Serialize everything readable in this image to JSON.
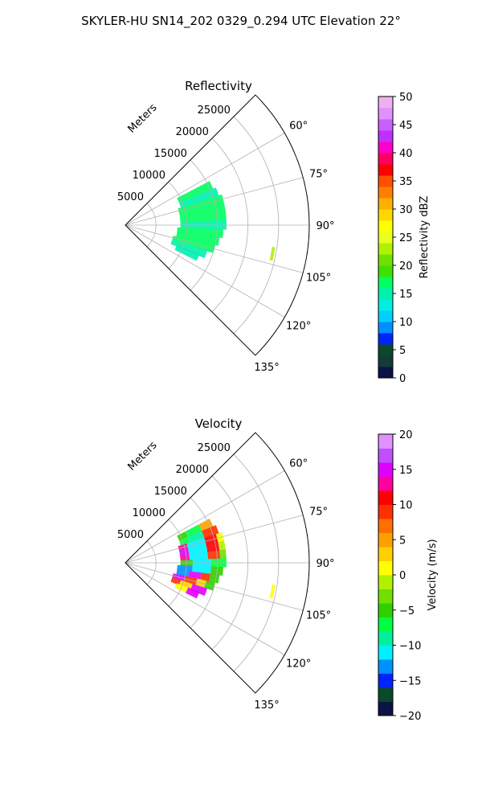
{
  "suptitle": "SKYLER-HU  SN14_202  0329_0.294 UTC Elevation 22°",
  "chart_data": [
    {
      "type": "heatmap",
      "title": "Reflectivity",
      "radial_label": "Meters",
      "radial_ticks": [
        5000,
        10000,
        15000,
        20000,
        25000
      ],
      "radial_tick_labels": [
        "5000",
        "10000",
        "15000",
        "20000",
        "25000"
      ],
      "range_max": 30000,
      "azimuth_range": [
        45,
        135
      ],
      "azimuth_ticks": [
        60,
        75,
        90,
        105,
        120,
        135
      ],
      "azimuth_tick_labels": [
        "60°",
        "75°",
        "90°",
        "105°",
        "120°",
        "135°"
      ],
      "grid": true,
      "colorbar": {
        "label": "Reflectivity dBZ",
        "range": [
          0,
          50
        ],
        "ticks": [
          0,
          5,
          10,
          15,
          20,
          25,
          30,
          35,
          40,
          45,
          50
        ],
        "tick_labels": [
          "0",
          "5",
          "10",
          "15",
          "20",
          "25",
          "30",
          "35",
          "40",
          "45",
          "50"
        ]
      },
      "echoes": [
        {
          "azimuth": 65,
          "range_min": 9500,
          "range_max": 15500,
          "value": 16
        },
        {
          "azimuth": 70,
          "range_min": 9500,
          "range_max": 16000,
          "value": 15
        },
        {
          "azimuth": 75,
          "range_min": 9000,
          "range_max": 16500,
          "value": 16
        },
        {
          "azimuth": 80,
          "range_min": 9000,
          "range_max": 16500,
          "value": 17
        },
        {
          "azimuth": 85,
          "range_min": 9000,
          "range_max": 16500,
          "value": 16
        },
        {
          "azimuth": 90,
          "range_min": 9000,
          "range_max": 16500,
          "value": 15
        },
        {
          "azimuth": 95,
          "range_min": 8500,
          "range_max": 16000,
          "value": 16
        },
        {
          "azimuth": 100,
          "range_min": 8500,
          "range_max": 15500,
          "value": 17
        },
        {
          "azimuth": 105,
          "range_min": 8000,
          "range_max": 15000,
          "value": 16
        },
        {
          "azimuth": 110,
          "range_min": 8000,
          "range_max": 14000,
          "value": 15
        },
        {
          "azimuth": 114,
          "range_min": 9000,
          "range_max": 13000,
          "value": 14
        },
        {
          "azimuth": 101,
          "range_min": 24200,
          "range_max": 24700,
          "value": 22
        }
      ]
    },
    {
      "type": "heatmap",
      "title": "Velocity",
      "radial_label": "Meters",
      "radial_ticks": [
        5000,
        10000,
        15000,
        20000,
        25000
      ],
      "radial_tick_labels": [
        "5000",
        "10000",
        "15000",
        "20000",
        "25000"
      ],
      "range_max": 30000,
      "azimuth_range": [
        45,
        135
      ],
      "azimuth_ticks": [
        60,
        75,
        90,
        105,
        120,
        135
      ],
      "azimuth_tick_labels": [
        "60°",
        "75°",
        "90°",
        "105°",
        "120°",
        "135°"
      ],
      "grid": true,
      "colorbar": {
        "label": "Velocity (m/s)",
        "range": [
          -20,
          20
        ],
        "ticks": [
          -20,
          -15,
          -10,
          -5,
          0,
          5,
          10,
          15,
          20
        ],
        "tick_labels": [
          "−20",
          "−15",
          "−10",
          "−5",
          "0",
          "5",
          "10",
          "15",
          "20"
        ]
      },
      "echoes": [
        {
          "azimuth": 65,
          "bands": [
            [
              9500,
              11000,
              -5
            ],
            [
              11000,
              13500,
              -8
            ],
            [
              13500,
              15500,
              5
            ]
          ]
        },
        {
          "azimuth": 70,
          "bands": [
            [
              9500,
              11000,
              -7
            ],
            [
              11000,
              13500,
              -10
            ],
            [
              13500,
              16000,
              8
            ]
          ]
        },
        {
          "azimuth": 75,
          "bands": [
            [
              9000,
              10500,
              12
            ],
            [
              10500,
              13500,
              -12
            ],
            [
              13500,
              15500,
              10
            ],
            [
              15500,
              16500,
              0
            ]
          ]
        },
        {
          "azimuth": 80,
          "bands": [
            [
              9000,
              10500,
              14
            ],
            [
              10500,
              13500,
              -12
            ],
            [
              13500,
              15500,
              10
            ],
            [
              15500,
              16500,
              -2
            ]
          ]
        },
        {
          "azimuth": 85,
          "bands": [
            [
              9000,
              10500,
              12
            ],
            [
              10500,
              13500,
              -12
            ],
            [
              13500,
              15500,
              8
            ],
            [
              15500,
              16500,
              -3
            ]
          ]
        },
        {
          "azimuth": 90,
          "bands": [
            [
              9000,
              11000,
              -5
            ],
            [
              11000,
              14000,
              -12
            ],
            [
              14000,
              16500,
              -8
            ]
          ]
        },
        {
          "azimuth": 95,
          "bands": [
            [
              8500,
              11000,
              -13
            ],
            [
              11000,
              14000,
              -12
            ],
            [
              14000,
              16000,
              -6
            ]
          ]
        },
        {
          "azimuth": 100,
          "bands": [
            [
              8500,
              10500,
              -14
            ],
            [
              10500,
              12500,
              14
            ],
            [
              12500,
              14000,
              8
            ],
            [
              14000,
              15500,
              -6
            ]
          ]
        },
        {
          "azimuth": 105,
          "bands": [
            [
              8000,
              10000,
              15
            ],
            [
              10000,
              12000,
              9
            ],
            [
              12000,
              13500,
              2
            ],
            [
              13500,
              15000,
              -5
            ]
          ]
        },
        {
          "azimuth": 110,
          "bands": [
            [
              8000,
              9500,
              9
            ],
            [
              9500,
              11500,
              3
            ],
            [
              11500,
              14000,
              14
            ]
          ]
        },
        {
          "azimuth": 114,
          "bands": [
            [
              9000,
              11000,
              1
            ],
            [
              11000,
              13000,
              14
            ]
          ]
        },
        {
          "azimuth": 101,
          "bands": [
            [
              24200,
              24700,
              1
            ]
          ]
        }
      ]
    }
  ]
}
